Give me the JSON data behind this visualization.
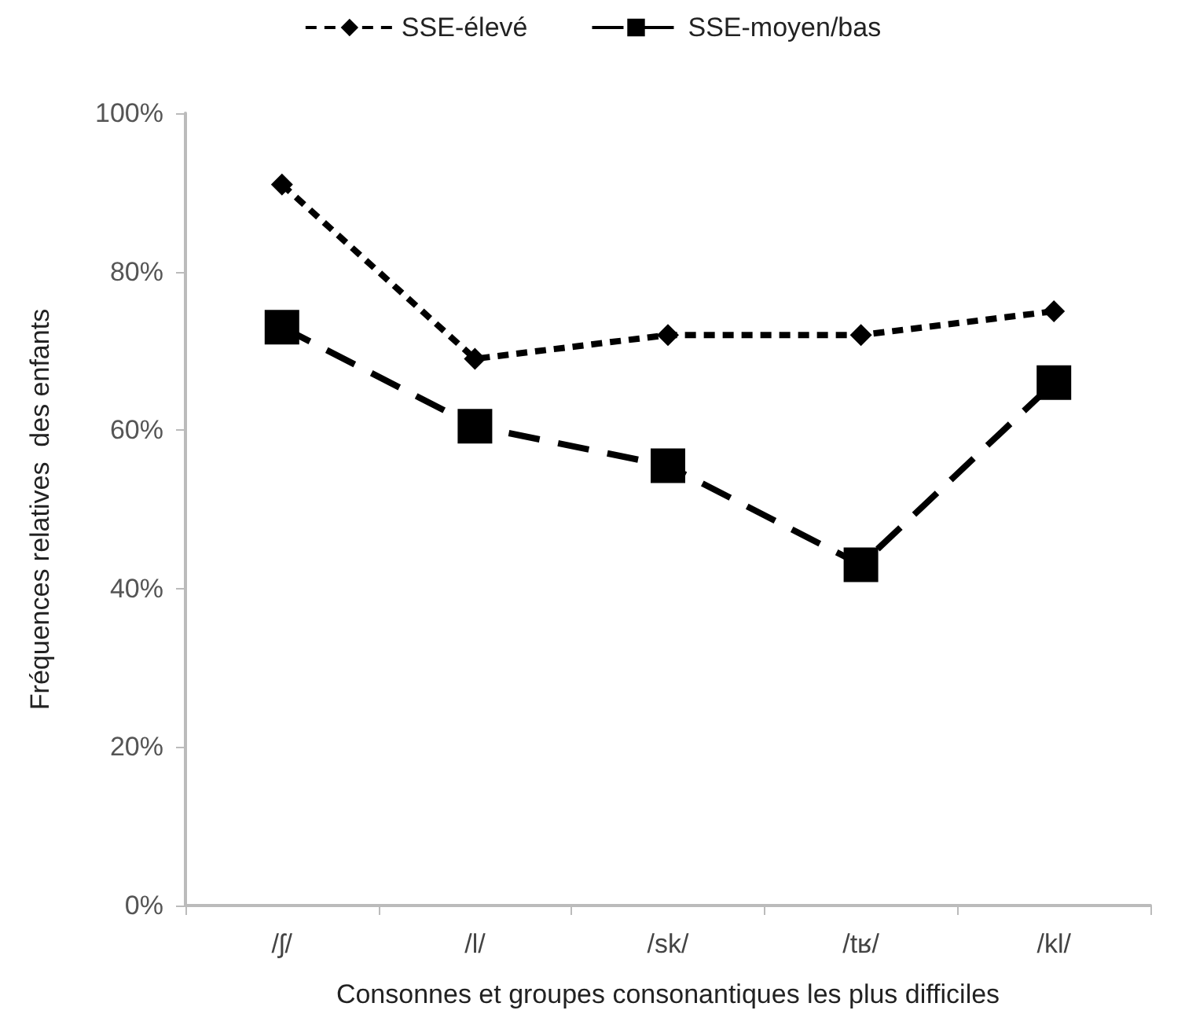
{
  "chart_data": {
    "type": "line",
    "xlabel": "Consonnes et groupes consonantiques les plus difficiles",
    "ylabel": "Fréquences relatives  des enfants",
    "categories": [
      "/ʃ/",
      "/l/",
      "/sk/",
      "/tʁ/",
      "/kl/"
    ],
    "series": [
      {
        "name": "SSE-élevé",
        "color": "#000000",
        "marker": "diamond",
        "line_style": "dotted",
        "values": [
          91,
          69,
          72,
          72,
          75
        ]
      },
      {
        "name": "SSE-moyen/bas",
        "color": "#000000",
        "marker": "square",
        "line_style": "dashed",
        "values": [
          73,
          60.5,
          55.5,
          43,
          66
        ]
      }
    ],
    "ylim": [
      0,
      100
    ],
    "yticks": [
      {
        "value": 0,
        "label": "0%"
      },
      {
        "value": 20,
        "label": "20%"
      },
      {
        "value": 40,
        "label": "40%"
      },
      {
        "value": 60,
        "label": "60%"
      },
      {
        "value": 80,
        "label": "80%"
      },
      {
        "value": 100,
        "label": "100%"
      }
    ],
    "grid": false,
    "legend": "top"
  }
}
